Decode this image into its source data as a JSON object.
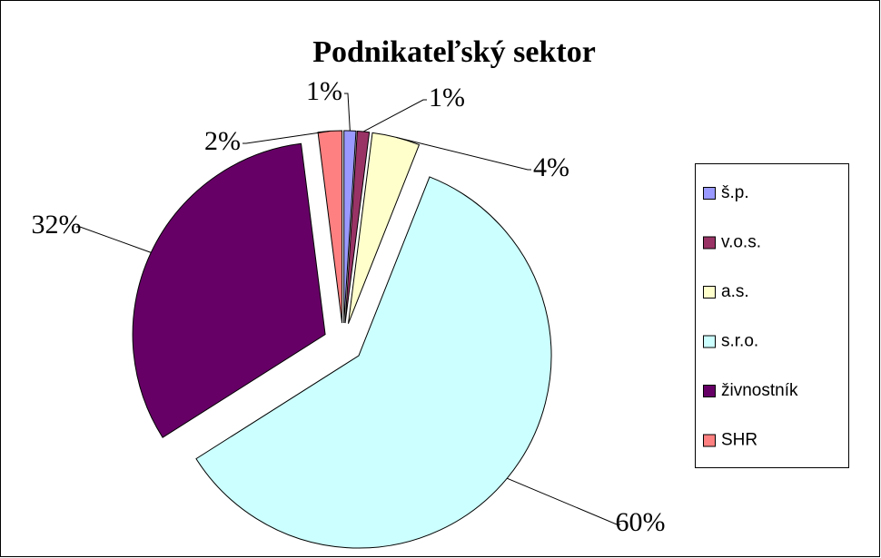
{
  "chart_data": {
    "type": "pie",
    "title": "Podnikateľský sektor",
    "categories": [
      "š.p.",
      "v.o.s.",
      "a.s.",
      "s.r.o.",
      "živnostník",
      "SHR"
    ],
    "values": [
      1,
      1,
      4,
      60,
      32,
      2
    ],
    "value_labels": [
      "1%",
      "1%",
      "4%",
      "60%",
      "32%",
      "2%"
    ],
    "colors": [
      "#9999ff",
      "#993366",
      "#ffffcc",
      "#ccffff",
      "#660066",
      "#ff8080"
    ],
    "legend": "right"
  }
}
